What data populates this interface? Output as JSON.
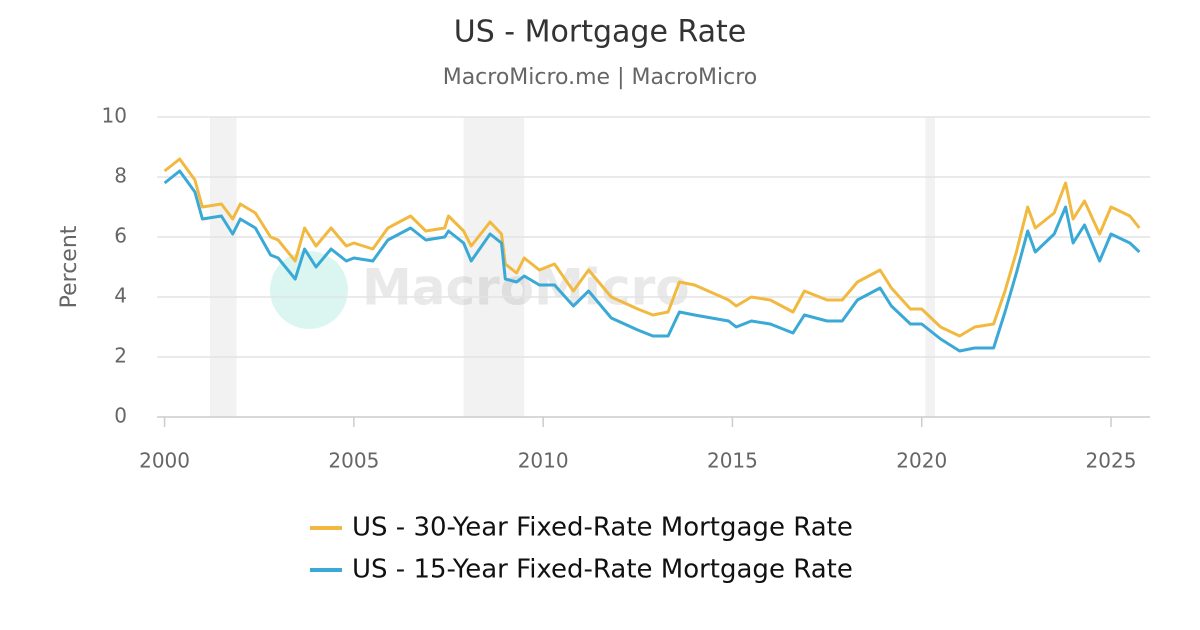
{
  "chart_data": {
    "type": "line",
    "title": "US - Mortgage Rate",
    "subtitle": "MacroMicro.me | MacroMicro",
    "watermark": "MacroMicro",
    "y_label": "Percent",
    "xlim": [
      1999.8,
      2026.03
    ],
    "xticks": [
      2000,
      2005,
      2010,
      2015,
      2020,
      2025
    ],
    "ylim": [
      0,
      10
    ],
    "yticks": [
      0,
      2,
      4,
      6,
      8,
      10
    ],
    "grid": true,
    "legend": "bottom",
    "recession_color": "#f2f2f2",
    "recessions": [
      [
        2001.2,
        2001.9
      ],
      [
        2007.9,
        2009.5
      ],
      [
        2020.1,
        2020.35
      ]
    ],
    "x": [
      2000.0,
      2000.4,
      2000.8,
      2001.0,
      2001.5,
      2001.8,
      2002.0,
      2002.4,
      2002.8,
      2003.0,
      2003.45,
      2003.7,
      2004.0,
      2004.4,
      2004.8,
      2005.0,
      2005.5,
      2005.9,
      2006.5,
      2006.9,
      2007.4,
      2007.5,
      2007.9,
      2008.1,
      2008.6,
      2008.9,
      2009.0,
      2009.3,
      2009.5,
      2009.9,
      2010.3,
      2010.8,
      2011.2,
      2011.8,
      2012.5,
      2012.9,
      2013.3,
      2013.6,
      2014.0,
      2014.9,
      2015.1,
      2015.5,
      2016.0,
      2016.6,
      2016.9,
      2017.5,
      2017.9,
      2018.3,
      2018.9,
      2019.2,
      2019.7,
      2020.0,
      2020.5,
      2021.0,
      2021.4,
      2021.9,
      2022.2,
      2022.5,
      2022.8,
      2023.0,
      2023.5,
      2023.8,
      2024.0,
      2024.3,
      2024.7,
      2025.0,
      2025.5,
      2025.75
    ],
    "series": [
      {
        "name": "US - 30-Year Fixed-Rate Mortgage Rate",
        "color": "#f2b941",
        "values": [
          8.2,
          8.6,
          7.9,
          7.0,
          7.1,
          6.6,
          7.1,
          6.8,
          6.0,
          5.9,
          5.2,
          6.3,
          5.7,
          6.3,
          5.7,
          5.8,
          5.6,
          6.3,
          6.7,
          6.2,
          6.3,
          6.7,
          6.2,
          5.7,
          6.5,
          6.1,
          5.1,
          4.8,
          5.3,
          4.9,
          5.1,
          4.2,
          4.9,
          4.0,
          3.6,
          3.4,
          3.5,
          4.5,
          4.4,
          3.9,
          3.7,
          4.0,
          3.9,
          3.5,
          4.2,
          3.9,
          3.9,
          4.5,
          4.9,
          4.3,
          3.6,
          3.6,
          3.0,
          2.7,
          3.0,
          3.1,
          4.2,
          5.5,
          7.0,
          6.3,
          6.8,
          7.8,
          6.6,
          7.2,
          6.1,
          7.0,
          6.7,
          6.3
        ]
      },
      {
        "name": "US - 15-Year Fixed-Rate Mortgage Rate",
        "color": "#3aa9d6",
        "values": [
          7.8,
          8.2,
          7.5,
          6.6,
          6.7,
          6.1,
          6.6,
          6.3,
          5.4,
          5.3,
          4.6,
          5.6,
          5.0,
          5.6,
          5.2,
          5.3,
          5.2,
          5.9,
          6.3,
          5.9,
          6.0,
          6.2,
          5.8,
          5.2,
          6.1,
          5.8,
          4.6,
          4.5,
          4.7,
          4.4,
          4.4,
          3.7,
          4.2,
          3.3,
          2.9,
          2.7,
          2.7,
          3.5,
          3.4,
          3.2,
          3.0,
          3.2,
          3.1,
          2.8,
          3.4,
          3.2,
          3.2,
          3.9,
          4.3,
          3.7,
          3.1,
          3.1,
          2.6,
          2.2,
          2.3,
          2.3,
          3.5,
          4.8,
          6.2,
          5.5,
          6.1,
          7.0,
          5.8,
          6.4,
          5.2,
          6.1,
          5.8,
          5.5
        ]
      }
    ]
  }
}
